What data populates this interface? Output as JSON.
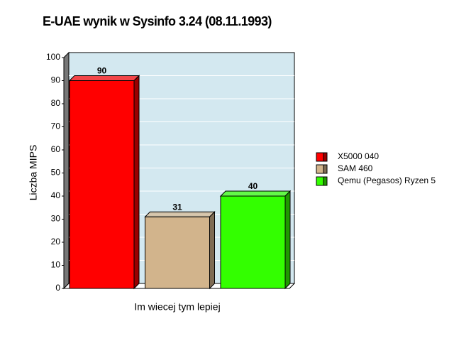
{
  "chart_data": {
    "type": "bar3d",
    "title": "E-UAE wynik w Sysinfo 3.24 (08.11.1993)",
    "y_label": "Liczba MIPS",
    "x_label": "Im wiecej tym lepiej",
    "categories": [
      null
    ],
    "series": [
      {
        "name": "X5000 040",
        "color": "#ff0000",
        "values": [
          90
        ]
      },
      {
        "name": "SAM 460",
        "color": "#d2b48c",
        "values": [
          31
        ]
      },
      {
        "name": "Qemu (Pegasos) Ryzen 5",
        "color": "#33ff00",
        "values": [
          40
        ]
      }
    ],
    "ylim": [
      0,
      100
    ],
    "yticks": [
      0,
      10,
      20,
      30,
      40,
      50,
      60,
      70,
      80,
      90,
      100
    ],
    "grid": true,
    "legend": "right",
    "background": "#d3e8f0"
  }
}
